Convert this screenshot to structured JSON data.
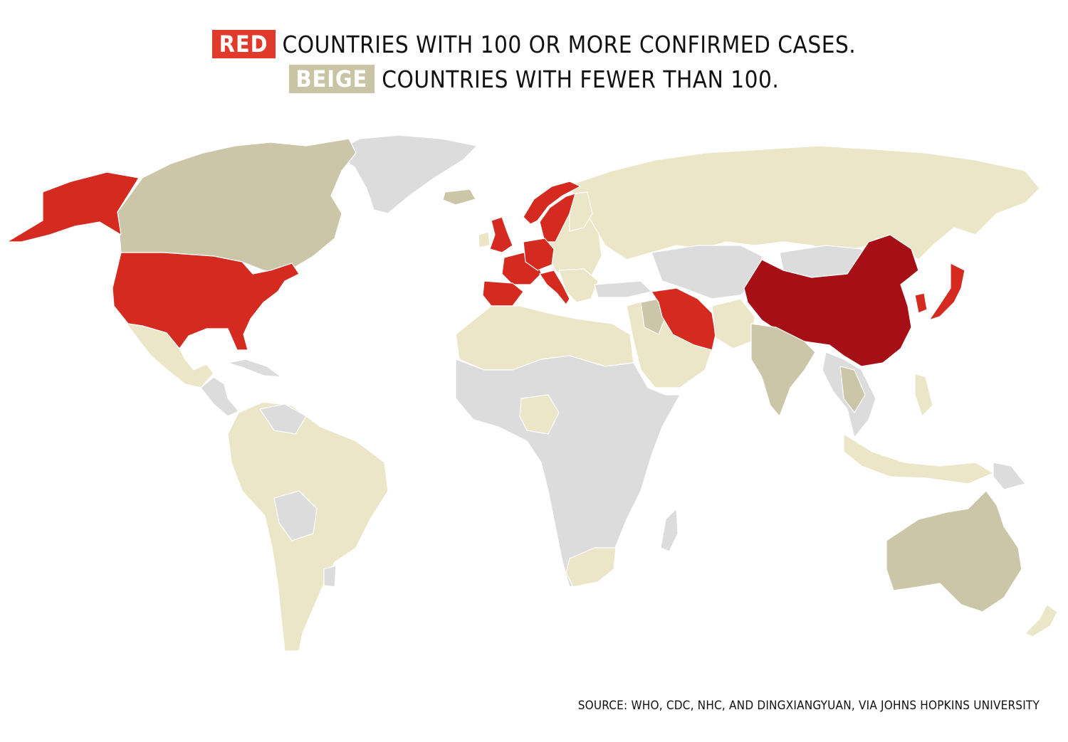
{
  "legend": {
    "red": {
      "label": "RED",
      "text": "COUNTRIES WITH 100 OR MORE CONFIRMED CASES.",
      "color": "#e03a2b"
    },
    "beige": {
      "label": "BEIGE",
      "text": "COUNTRIES WITH FEWER THAN 100.",
      "color": "#c8c4a4"
    }
  },
  "colors": {
    "china": "#a50f15",
    "red": "#d42a1f",
    "beige_dark": "#cbc6a8",
    "beige_light": "#ece6c8",
    "no_data": "#dcdcdc",
    "border": "#ffffff"
  },
  "regions": [
    {
      "name": "China",
      "category": "china"
    },
    {
      "name": "United States",
      "category": "red"
    },
    {
      "name": "Alaska",
      "category": "red"
    },
    {
      "name": "Iran",
      "category": "red"
    },
    {
      "name": "Italy",
      "category": "red"
    },
    {
      "name": "South Korea",
      "category": "red"
    },
    {
      "name": "Japan",
      "category": "red"
    },
    {
      "name": "Spain",
      "category": "red"
    },
    {
      "name": "France",
      "category": "red"
    },
    {
      "name": "Germany",
      "category": "red"
    },
    {
      "name": "United Kingdom",
      "category": "red"
    },
    {
      "name": "Norway",
      "category": "red"
    },
    {
      "name": "Sweden",
      "category": "red"
    },
    {
      "name": "Canada",
      "category": "beige_dark"
    },
    {
      "name": "Australia",
      "category": "beige_dark"
    },
    {
      "name": "India",
      "category": "beige_dark"
    },
    {
      "name": "Russia",
      "category": "beige_light"
    },
    {
      "name": "Brazil",
      "category": "beige_light"
    },
    {
      "name": "Mexico",
      "category": "beige_light"
    },
    {
      "name": "Greenland",
      "category": "no_data"
    },
    {
      "name": "Africa",
      "category": "no_data"
    }
  ],
  "source": "SOURCE: WHO, CDC, NHC, AND DINGXIANGYUAN, VIA JOHNS HOPKINS UNIVERSITY"
}
